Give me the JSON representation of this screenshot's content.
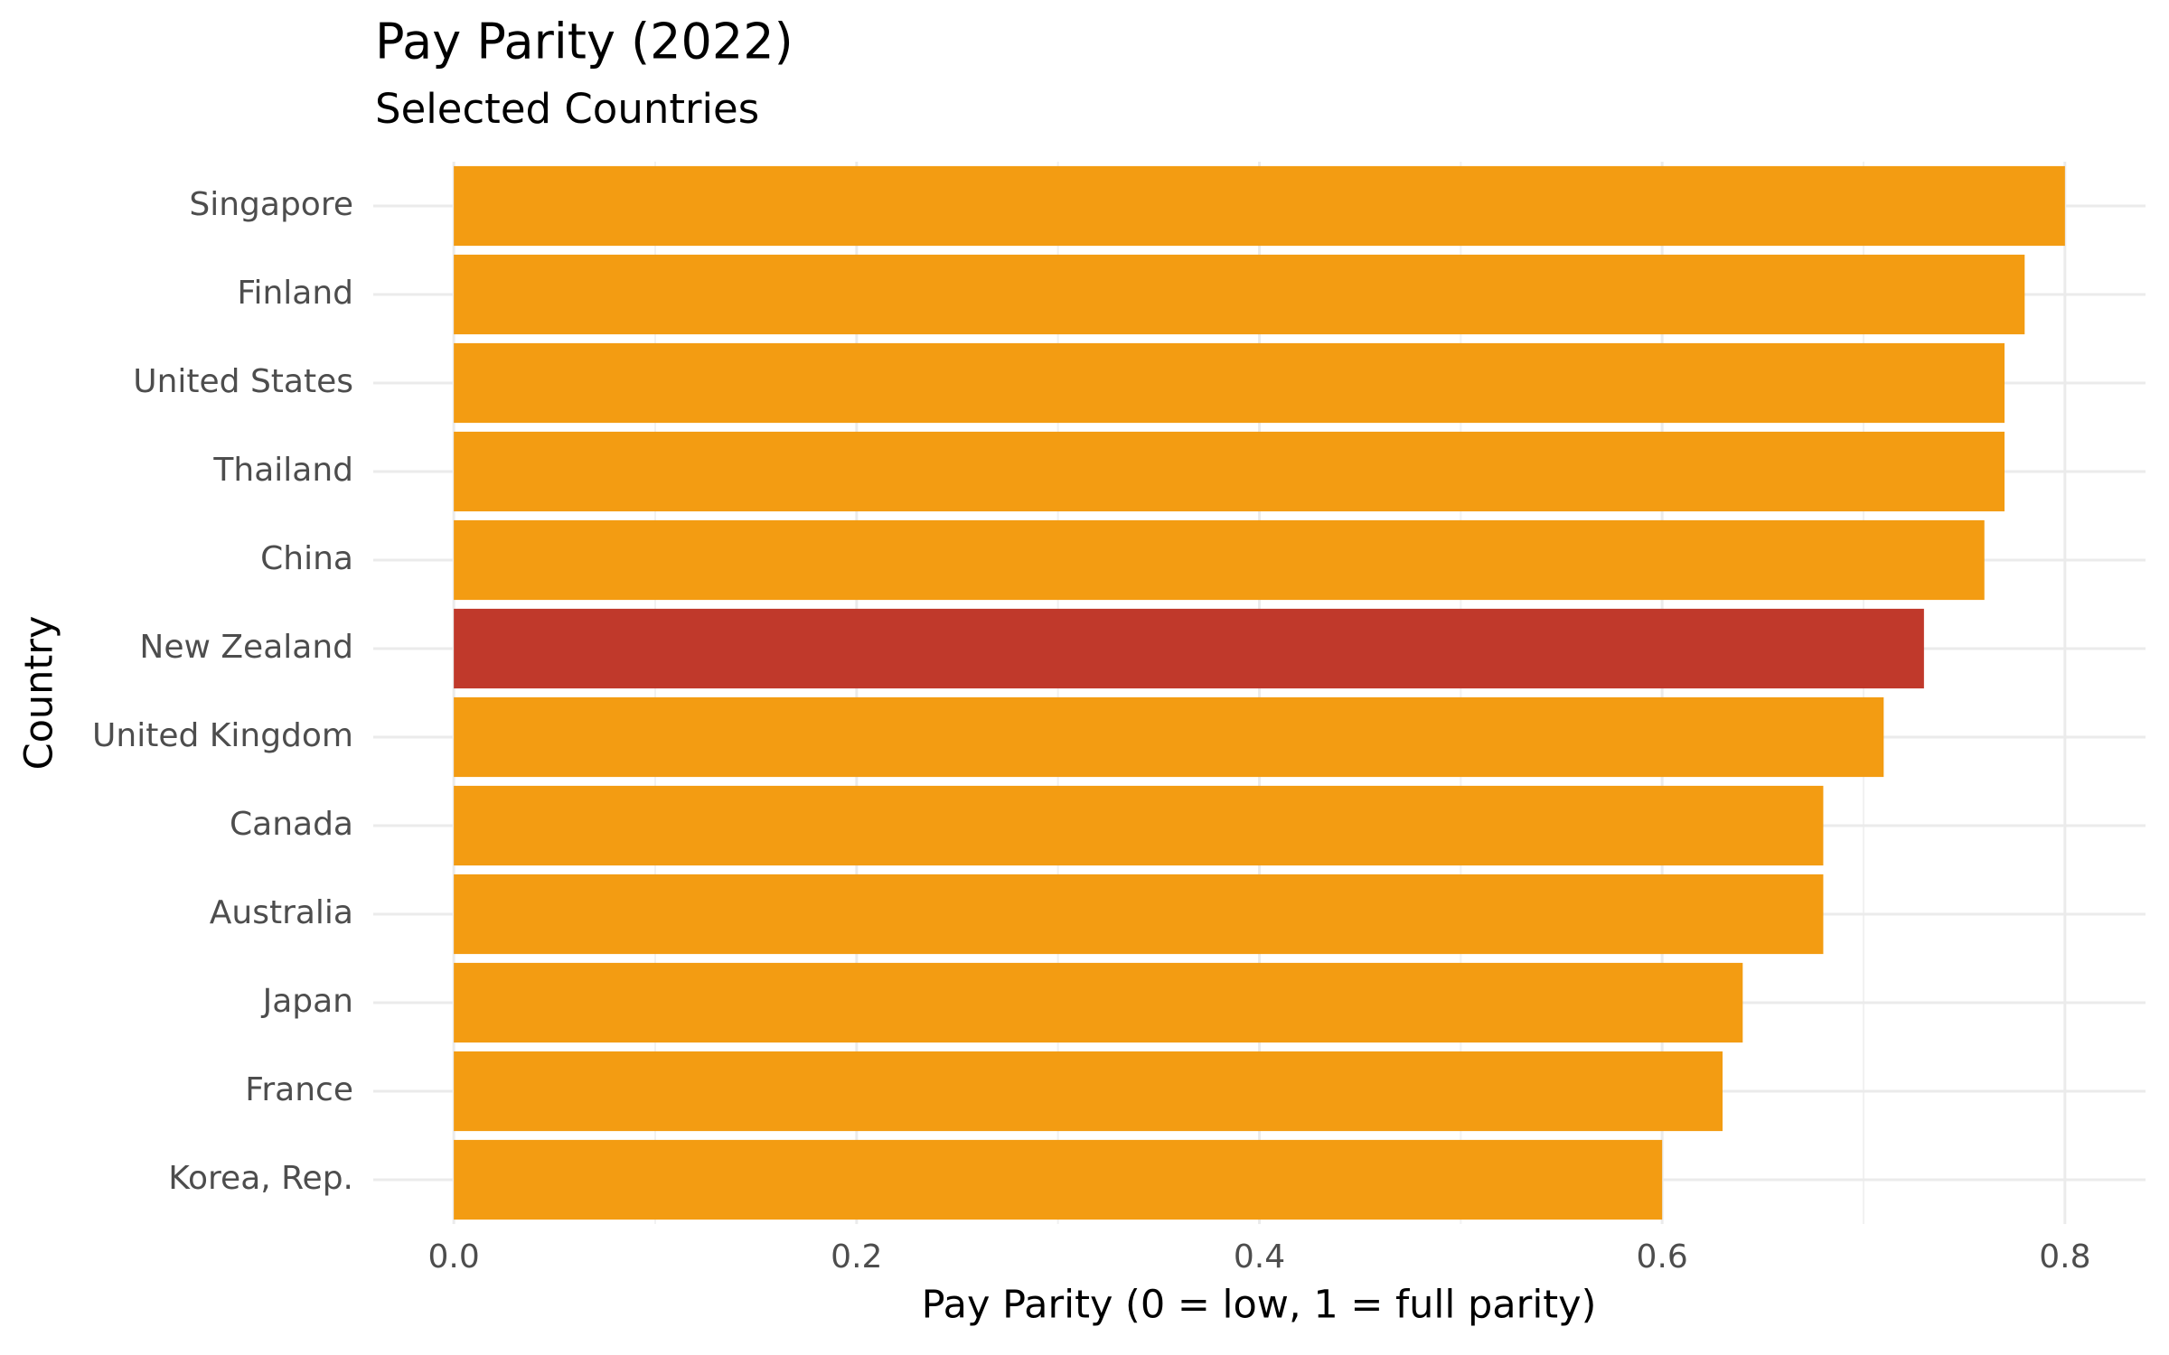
{
  "chart_data": {
    "type": "bar",
    "orientation": "horizontal",
    "title": "Pay Parity (2022)",
    "subtitle": "Selected Countries",
    "x_label": "Pay Parity (0 = low, 1 = full parity)",
    "y_label": "Country",
    "categories": [
      "Singapore",
      "Finland",
      "United States",
      "Thailand",
      "China",
      "New Zealand",
      "United Kingdom",
      "Canada",
      "Australia",
      "Japan",
      "France",
      "Korea, Rep."
    ],
    "values": [
      0.8,
      0.78,
      0.77,
      0.77,
      0.76,
      0.73,
      0.71,
      0.68,
      0.68,
      0.64,
      0.63,
      0.6
    ],
    "color": "#f39c12",
    "highlight": "New Zealand",
    "highlight_color": "#c0392b",
    "xlim": [
      -0.04,
      0.84
    ],
    "xticks": [
      {
        "value": 0,
        "label": "0.0"
      },
      0.2,
      0.4,
      0.6,
      0.8
    ],
    "grid": true
  }
}
